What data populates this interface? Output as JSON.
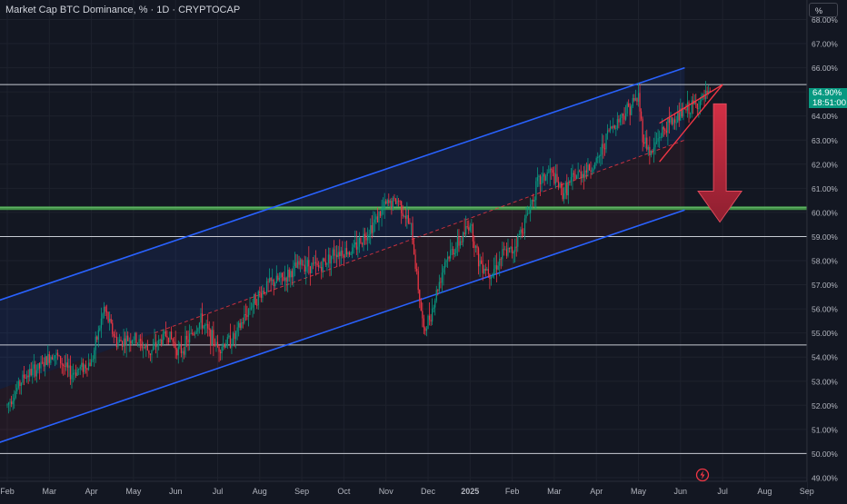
{
  "title": "Market Cap BTC Dominance, % · 1D · CRYPTOCAP",
  "unit_label": "%",
  "price_badge": {
    "value": "64.90%",
    "countdown": "18:51:00",
    "color": "#089981"
  },
  "colors": {
    "background": "#131722",
    "grid": "#1e222d",
    "channel": "#2962ff",
    "wedge": "#f23645",
    "arrow": "#b2263a",
    "up_candle": "#089981",
    "down_candle": "#f23645",
    "support_band": "#4caf50"
  },
  "icons": {
    "alert": "lightning-alert-icon"
  },
  "chart_data": {
    "type": "candlestick",
    "title": "Market Cap BTC Dominance, % · 1D · CRYPTOCAP",
    "ylim": [
      48.7,
      68.7
    ],
    "y_ticks": [
      "49.00%",
      "50.00%",
      "51.00%",
      "52.00%",
      "53.00%",
      "54.00%",
      "55.00%",
      "56.00%",
      "57.00%",
      "58.00%",
      "59.00%",
      "60.00%",
      "61.00%",
      "62.00%",
      "63.00%",
      "64.00%",
      "65.00%",
      "66.00%",
      "67.00%",
      "68.00%"
    ],
    "x_ticks": [
      "Feb",
      "Mar",
      "Apr",
      "May",
      "Jun",
      "Jul",
      "Aug",
      "Sep",
      "Oct",
      "Nov",
      "Dec",
      "2025",
      "Feb",
      "Mar",
      "Apr",
      "May",
      "Jun",
      "Jul",
      "Aug",
      "Sep"
    ],
    "x_tick_month_index": [
      0,
      1,
      2,
      3,
      4,
      5,
      6,
      7,
      8,
      9,
      10,
      11,
      12,
      13,
      14,
      15,
      16,
      17,
      18,
      19
    ],
    "grid": true,
    "last_value": 64.9,
    "price_path": [
      [
        0,
        52.0
      ],
      [
        0.4,
        53.2
      ],
      [
        0.8,
        53.6
      ],
      [
        1.1,
        54.2
      ],
      [
        1.5,
        53.3
      ],
      [
        2.0,
        53.8
      ],
      [
        2.3,
        56.0
      ],
      [
        2.6,
        54.6
      ],
      [
        3.0,
        54.8
      ],
      [
        3.4,
        54.2
      ],
      [
        3.8,
        55.0
      ],
      [
        4.1,
        54.2
      ],
      [
        4.6,
        55.5
      ],
      [
        5.0,
        54.4
      ],
      [
        5.4,
        54.8
      ],
      [
        5.8,
        56.2
      ],
      [
        6.2,
        57.0
      ],
      [
        6.6,
        57.3
      ],
      [
        7.0,
        57.9
      ],
      [
        7.4,
        57.7
      ],
      [
        7.8,
        58.4
      ],
      [
        8.2,
        58.4
      ],
      [
        8.6,
        59.3
      ],
      [
        9.0,
        60.3
      ],
      [
        9.3,
        60.5
      ],
      [
        9.6,
        59.3
      ],
      [
        9.9,
        55.0
      ],
      [
        10.1,
        56.0
      ],
      [
        10.4,
        58.0
      ],
      [
        10.8,
        58.9
      ],
      [
        11.0,
        59.6
      ],
      [
        11.2,
        58.0
      ],
      [
        11.5,
        57.5
      ],
      [
        11.8,
        58.3
      ],
      [
        12.0,
        58.4
      ],
      [
        12.3,
        59.6
      ],
      [
        12.6,
        61.2
      ],
      [
        12.9,
        61.7
      ],
      [
        13.2,
        60.8
      ],
      [
        13.5,
        61.5
      ],
      [
        14.0,
        62.0
      ],
      [
        14.3,
        63.4
      ],
      [
        14.7,
        64.2
      ],
      [
        15.0,
        64.8
      ],
      [
        15.1,
        63.2
      ],
      [
        15.3,
        62.4
      ],
      [
        15.5,
        63.2
      ],
      [
        15.8,
        63.8
      ],
      [
        16.1,
        64.2
      ],
      [
        16.4,
        64.5
      ],
      [
        16.7,
        64.9
      ]
    ],
    "horizontal_levels": [
      65.3,
      60.2,
      59.0,
      54.5,
      50.0
    ],
    "support_band": [
      60.1,
      60.25
    ],
    "channel": {
      "upper": [
        [
          -1.3,
          55.7
        ],
        [
          16.1,
          66.0
        ]
      ],
      "mid": [
        [
          3.5,
          55.0
        ],
        [
          16.1,
          63.0
        ]
      ],
      "lower": [
        [
          -1.3,
          49.8
        ],
        [
          16.1,
          60.1
        ]
      ]
    },
    "wedge": {
      "upper": [
        [
          15.5,
          63.7
        ],
        [
          17.0,
          65.3
        ]
      ],
      "lower": [
        [
          15.5,
          62.1
        ],
        [
          17.0,
          65.3
        ]
      ]
    },
    "forecast_arrow": {
      "from": 64.5,
      "to": 59.6,
      "month_index": 17.0
    }
  }
}
